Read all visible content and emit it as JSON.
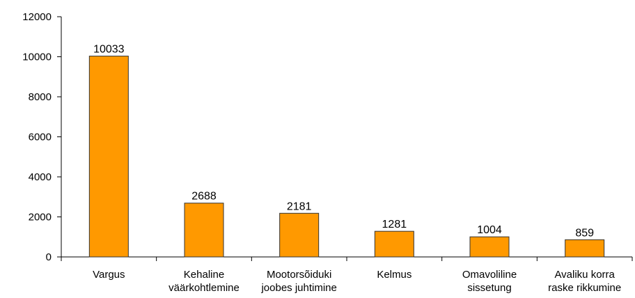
{
  "chart_data": {
    "type": "bar",
    "categories": [
      [
        "Vargus"
      ],
      [
        "Kehaline",
        "väärkohtlemine"
      ],
      [
        "Mootorsõiduki",
        "joobes juhtimine"
      ],
      [
        "Kelmus"
      ],
      [
        "Omavoliline",
        "sissetung"
      ],
      [
        "Avaliku korra",
        "raske rikkumine"
      ]
    ],
    "values": [
      10033,
      2688,
      2181,
      1281,
      1004,
      859
    ],
    "color": "#ff9900",
    "ylim": [
      0,
      12000
    ],
    "yticks": [
      0,
      2000,
      4000,
      6000,
      8000,
      10000,
      12000
    ],
    "grid": false
  }
}
